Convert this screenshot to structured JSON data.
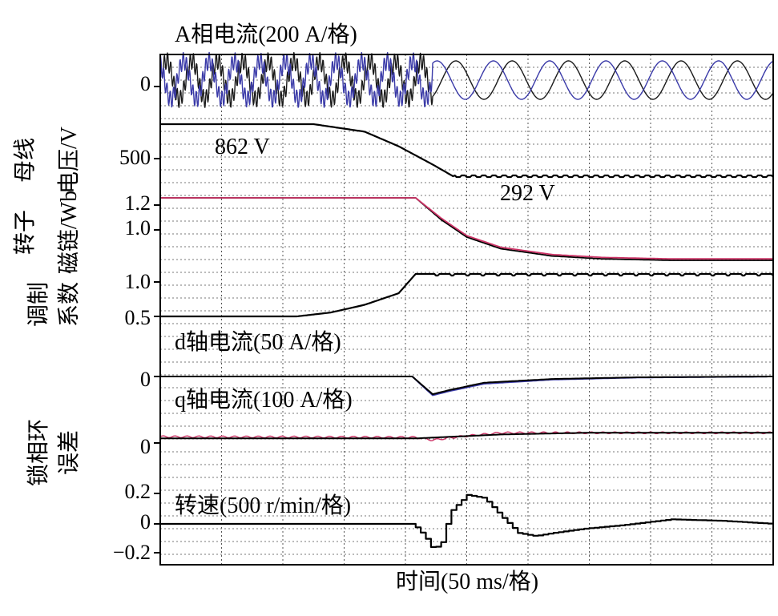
{
  "chart_data": [
    {
      "type": "line",
      "title": "A相电流(200 A/格)",
      "ylabel": "",
      "yticks": [
        "0"
      ],
      "series": [
        {
          "color": "#1a1a1a",
          "phase_deg": 0
        },
        {
          "color": "#3a3aa8",
          "phase_deg": 120
        }
      ],
      "description_values": {
        "amplitude_divisions": 0.9,
        "ripple_before_ms": 160
      }
    },
    {
      "type": "line",
      "title": "",
      "ylabel": "母线电压/V",
      "yticks": [
        "500"
      ],
      "annotations": [
        "862 V",
        "292 V"
      ],
      "series": [
        {
          "color": "#000000",
          "x": [
            0,
            90,
            120,
            140,
            160,
            172,
            360
          ],
          "y": [
            862,
            862,
            780,
            620,
            420,
            292,
            292
          ]
        }
      ]
    },
    {
      "type": "line",
      "title": "",
      "ylabel": "转子磁链/Wb",
      "yticks": [
        "1.2",
        "1.0"
      ],
      "series": [
        {
          "color": "#000000",
          "x": [
            0,
            150,
            165,
            180,
            200,
            230,
            260,
            300,
            360
          ],
          "y": [
            1.2,
            1.2,
            1.05,
            0.93,
            0.85,
            0.8,
            0.78,
            0.77,
            0.77
          ]
        },
        {
          "color": "#cc3366",
          "x": [
            0,
            150,
            165,
            180,
            200,
            230,
            260,
            300,
            360
          ],
          "y": [
            1.2,
            1.2,
            1.06,
            0.94,
            0.86,
            0.81,
            0.79,
            0.78,
            0.78
          ]
        }
      ]
    },
    {
      "type": "line",
      "title": "",
      "ylabel": "调制系数",
      "yticks": [
        "1.0",
        "0.5"
      ],
      "series": [
        {
          "color": "#000000",
          "x": [
            0,
            80,
            100,
            120,
            140,
            150,
            360
          ],
          "y": [
            0.5,
            0.5,
            0.55,
            0.65,
            0.8,
            1.05,
            1.05
          ]
        }
      ]
    },
    {
      "type": "line",
      "title": "",
      "ylabel": "",
      "yticks": [
        "0"
      ],
      "annotations": [
        "d轴电流(50 A/格)",
        "q轴电流(100 A/格)"
      ],
      "series": [
        {
          "color": "#3a3aa8",
          "x": [
            0,
            148,
            160,
            170,
            190,
            230,
            280,
            360
          ],
          "y": [
            0,
            0,
            -0.9,
            -0.7,
            -0.35,
            -0.15,
            -0.05,
            0
          ]
        },
        {
          "color": "#000000",
          "x": [
            0,
            148,
            160,
            170,
            190,
            230,
            280,
            360
          ],
          "y": [
            0,
            0,
            -0.85,
            -0.65,
            -0.3,
            -0.12,
            -0.04,
            0
          ]
        }
      ]
    },
    {
      "type": "line",
      "title": "",
      "ylabel": "锁相环误差",
      "yticks": [
        "0"
      ],
      "series": [
        {
          "color": "#cc3366",
          "x": [
            0,
            150,
            160,
            175,
            200,
            360
          ],
          "y": [
            0.2,
            0.15,
            -0.1,
            0.2,
            0.55,
            0.55
          ]
        },
        {
          "color": "#000000",
          "x": [
            0,
            150,
            200,
            250,
            360
          ],
          "y": [
            0.05,
            0.05,
            0.4,
            0.55,
            0.55
          ]
        }
      ]
    },
    {
      "type": "line",
      "title": "转速(500 r/min/格)",
      "ylabel": "",
      "yticks": [
        "0.2",
        "0",
        "−0.2"
      ],
      "series": [
        {
          "color": "#000000",
          "x": [
            0,
            148,
            155,
            160,
            165,
            170,
            180,
            190,
            200,
            210,
            220,
            230,
            250,
            270,
            300,
            330,
            360
          ],
          "y": [
            0,
            0,
            -0.08,
            -0.17,
            -0.12,
            0.08,
            0.19,
            0.17,
            0.05,
            -0.06,
            -0.08,
            -0.06,
            -0.03,
            -0.01,
            0.03,
            0.02,
            0
          ]
        }
      ]
    }
  ],
  "xlabel": "时间(50 ms/格)"
}
